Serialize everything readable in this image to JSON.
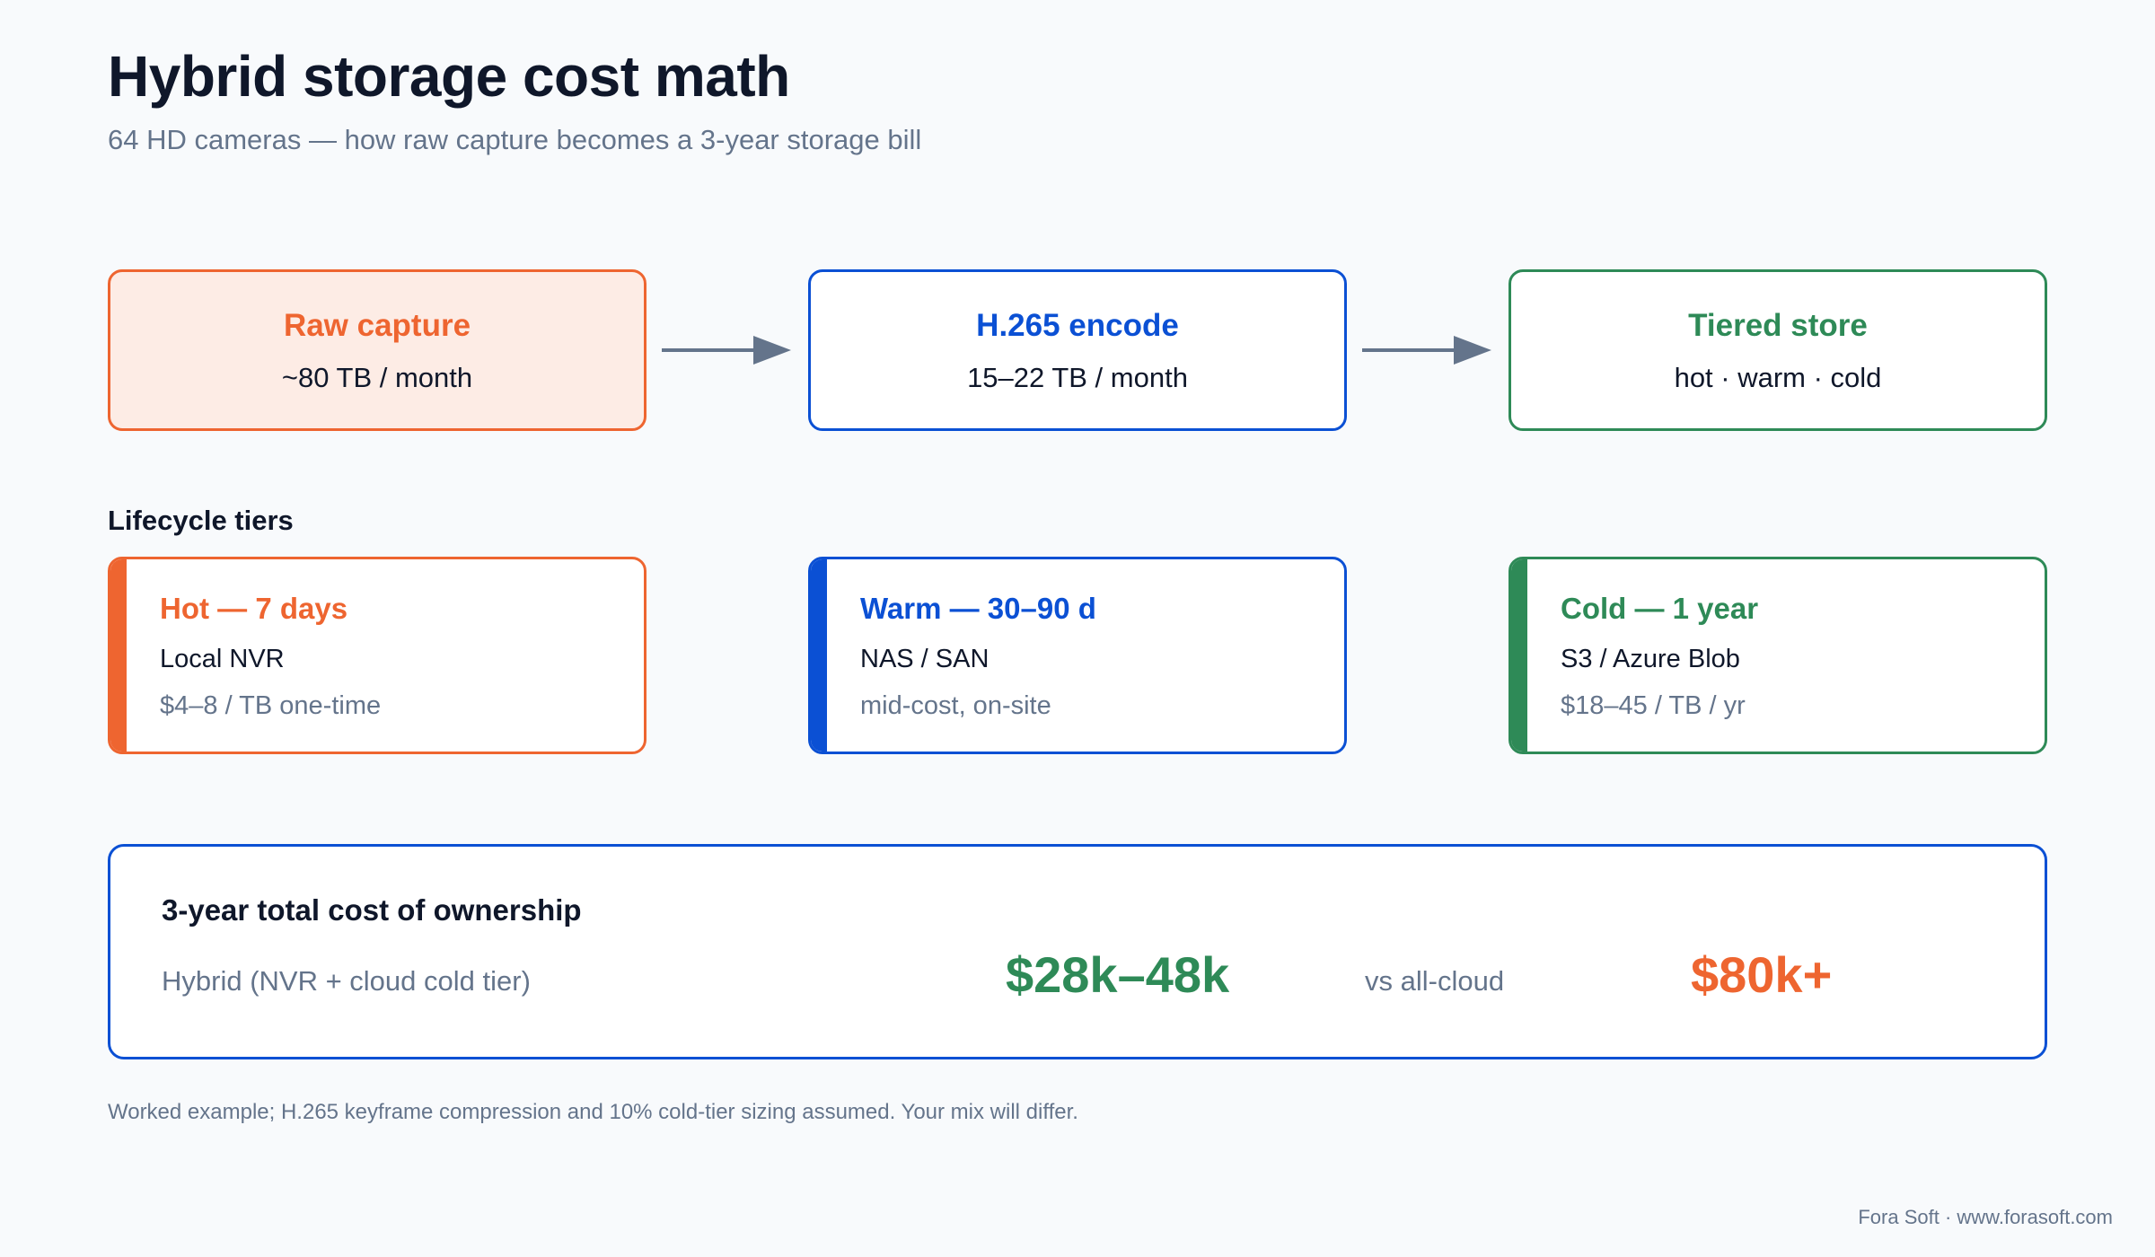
{
  "header": {
    "title": "Hybrid storage cost math",
    "subtitle": "64 HD cameras — how raw capture becomes a 3-year storage bill"
  },
  "flow": [
    {
      "title": "Raw capture",
      "detail": "~80 TB / month"
    },
    {
      "title": "H.265 encode",
      "detail": "15–22 TB / month"
    },
    {
      "title": "Tiered store",
      "detail": "hot · warm · cold"
    }
  ],
  "lifecycle": {
    "label": "Lifecycle tiers",
    "tiers": [
      {
        "title": "Hot — 7 days",
        "medium": "Local NVR",
        "cost": "$4–8 / TB one-time"
      },
      {
        "title": "Warm — 30–90 d",
        "medium": "NAS / SAN",
        "cost": "mid-cost, on-site"
      },
      {
        "title": "Cold — 1 year",
        "medium": "S3 / Azure Blob",
        "cost": "$18–45 / TB / yr"
      }
    ]
  },
  "tco": {
    "title": "3-year total cost of ownership",
    "hybrid_label": "Hybrid (NVR + cloud cold tier)",
    "hybrid_value": "$28k–48k",
    "vs_label": "vs all-cloud",
    "cloud_value": "$80k+"
  },
  "footnote": "Worked example; H.265 keyframe compression and 10% cold-tier sizing assumed. Your mix will differ.",
  "credit": "Fora Soft · www.forasoft.com",
  "colors": {
    "orange": "#ee6530",
    "blue": "#0b50d4",
    "green": "#2e8a57",
    "arrow": "#64748b"
  }
}
